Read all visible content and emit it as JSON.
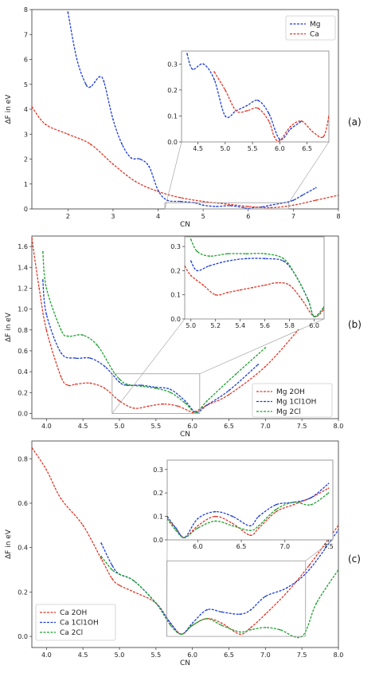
{
  "colors": {
    "red": "#e0392b",
    "blue": "#1f3fd6",
    "green": "#21a131",
    "frame": "#333333",
    "guide": "#9a9a9a"
  },
  "chart_data": [
    {
      "panel_label": "(a)",
      "type": "line",
      "xlabel": "CN",
      "ylabel": "ΔF in eV",
      "xlim": [
        1.2,
        8
      ],
      "ylim": [
        0,
        8
      ],
      "xticks": [
        "2",
        "3",
        "4",
        "5",
        "6",
        "7",
        "8"
      ],
      "yticks": [
        "0",
        "1",
        "2",
        "3",
        "4",
        "5",
        "6",
        "7",
        "8"
      ],
      "legend_position": "top-right",
      "series": [
        {
          "name": "Mg",
          "color": "blue",
          "x": [
            2.0,
            2.2,
            2.4,
            2.5,
            2.6,
            2.7,
            2.8,
            3.0,
            3.2,
            3.4,
            3.6,
            3.8,
            4.0,
            4.2,
            4.5,
            4.8,
            5.0,
            5.3,
            5.6,
            5.9,
            6.0,
            6.1,
            6.3,
            6.5,
            6.8,
            7.0,
            7.2,
            7.5
          ],
          "y": [
            7.9,
            6.0,
            5.0,
            4.9,
            5.1,
            5.3,
            5.1,
            3.6,
            2.6,
            2.05,
            2.0,
            1.7,
            0.75,
            0.35,
            0.3,
            0.25,
            0.15,
            0.1,
            0.13,
            0.05,
            0.01,
            0.05,
            0.08,
            0.15,
            0.25,
            0.35,
            0.55,
            0.85
          ]
        },
        {
          "name": "Ca",
          "color": "red",
          "x": [
            1.2,
            1.5,
            2.0,
            2.5,
            3.0,
            3.5,
            4.0,
            4.5,
            5.0,
            5.5,
            6.0,
            6.5,
            7.0,
            7.5,
            8.0
          ],
          "y": [
            4.1,
            3.4,
            3.0,
            2.6,
            1.8,
            1.1,
            0.7,
            0.45,
            0.3,
            0.2,
            0.1,
            0.05,
            0.15,
            0.35,
            0.55
          ]
        }
      ],
      "inset": {
        "xlim": [
          4.2,
          6.9
        ],
        "ylim": [
          0,
          0.35
        ],
        "xticks": [
          "4.5",
          "5.0",
          "5.5",
          "6.0",
          "6.5"
        ],
        "yticks": [
          "0.0",
          "0.1",
          "0.2",
          "0.3"
        ],
        "series": [
          {
            "name": "Mg",
            "color": "blue",
            "x": [
              4.3,
              4.4,
              4.6,
              4.8,
              5.0,
              5.2,
              5.4,
              5.6,
              5.8,
              6.0,
              6.2,
              6.4
            ],
            "y": [
              0.34,
              0.28,
              0.3,
              0.24,
              0.1,
              0.12,
              0.14,
              0.16,
              0.11,
              0.01,
              0.05,
              0.08
            ]
          },
          {
            "name": "Ca",
            "color": "red",
            "x": [
              4.8,
              5.0,
              5.2,
              5.4,
              5.6,
              5.8,
              5.9,
              6.0,
              6.2,
              6.4,
              6.6,
              6.8,
              6.9
            ],
            "y": [
              0.27,
              0.2,
              0.12,
              0.12,
              0.13,
              0.08,
              0.02,
              0.005,
              0.06,
              0.08,
              0.04,
              0.02,
              0.1
            ]
          }
        ]
      }
    },
    {
      "panel_label": "(b)",
      "type": "line",
      "xlabel": "CN",
      "ylabel": "ΔF in eV",
      "xlim": [
        3.8,
        8.0
      ],
      "ylim": [
        -0.05,
        1.7
      ],
      "xticks": [
        "4.0",
        "4.5",
        "5.0",
        "5.5",
        "6.0",
        "6.5",
        "7.0",
        "7.5",
        "8.0"
      ],
      "yticks": [
        "0.0",
        "0.2",
        "0.4",
        "0.6",
        "0.8",
        "1.0",
        "1.2",
        "1.4",
        "1.6"
      ],
      "legend_position": "bottom-right",
      "series": [
        {
          "name": "Mg 2OH",
          "color": "red",
          "x": [
            3.8,
            3.9,
            4.0,
            4.2,
            4.3,
            4.4,
            4.6,
            4.8,
            5.0,
            5.2,
            5.4,
            5.6,
            5.8,
            6.0,
            6.05,
            6.2,
            6.5,
            7.0,
            7.45
          ],
          "y": [
            1.68,
            1.2,
            0.8,
            0.35,
            0.27,
            0.28,
            0.29,
            0.24,
            0.12,
            0.05,
            0.07,
            0.09,
            0.07,
            0.01,
            0.02,
            0.08,
            0.18,
            0.45,
            0.8
          ]
        },
        {
          "name": "Mg 1Cl1OH",
          "color": "blue",
          "x": [
            3.95,
            4.0,
            4.2,
            4.4,
            4.6,
            4.8,
            5.0,
            5.1,
            5.3,
            5.5,
            5.7,
            5.9,
            6.05,
            6.2,
            6.5,
            6.9
          ],
          "y": [
            1.28,
            0.95,
            0.58,
            0.53,
            0.53,
            0.45,
            0.3,
            0.27,
            0.27,
            0.25,
            0.23,
            0.12,
            0.01,
            0.08,
            0.22,
            0.47
          ]
        },
        {
          "name": "Mg 2Cl",
          "color": "green",
          "x": [
            3.95,
            4.0,
            4.2,
            4.3,
            4.5,
            4.7,
            4.9,
            5.0,
            5.1,
            5.3,
            5.5,
            5.7,
            5.9,
            6.05,
            6.2,
            6.6,
            7.0
          ],
          "y": [
            1.55,
            1.2,
            0.8,
            0.74,
            0.75,
            0.65,
            0.42,
            0.33,
            0.28,
            0.26,
            0.24,
            0.2,
            0.1,
            0.01,
            0.12,
            0.38,
            0.63
          ]
        }
      ],
      "inset": {
        "xlim": [
          4.95,
          6.08
        ],
        "ylim": [
          0,
          0.34
        ],
        "xticks": [
          "5.0",
          "5.2",
          "5.4",
          "5.6",
          "5.8",
          "6.0"
        ],
        "yticks": [
          "0.0",
          "0.1",
          "0.2",
          "0.3"
        ],
        "series": [
          {
            "name": "Mg 2OH",
            "color": "red",
            "x": [
              4.95,
              5.0,
              5.1,
              5.2,
              5.3,
              5.4,
              5.5,
              5.6,
              5.7,
              5.8,
              5.9,
              6.0,
              6.08
            ],
            "y": [
              0.22,
              0.18,
              0.14,
              0.1,
              0.11,
              0.12,
              0.13,
              0.14,
              0.15,
              0.14,
              0.08,
              0.01,
              0.04
            ]
          },
          {
            "name": "Mg 1Cl1OH",
            "color": "blue",
            "x": [
              5.0,
              5.05,
              5.15,
              5.3,
              5.45,
              5.6,
              5.75,
              5.85,
              5.95,
              6.0,
              6.08
            ],
            "y": [
              0.24,
              0.2,
              0.22,
              0.24,
              0.25,
              0.25,
              0.24,
              0.18,
              0.08,
              0.01,
              0.05
            ]
          },
          {
            "name": "Mg 2Cl",
            "color": "green",
            "x": [
              5.0,
              5.05,
              5.15,
              5.3,
              5.45,
              5.6,
              5.75,
              5.85,
              5.95,
              6.0,
              6.08
            ],
            "y": [
              0.33,
              0.28,
              0.26,
              0.27,
              0.27,
              0.27,
              0.25,
              0.18,
              0.08,
              0.01,
              0.05
            ]
          }
        ]
      }
    },
    {
      "panel_label": "(c)",
      "type": "line",
      "xlabel": "CN",
      "ylabel": "ΔF in eV",
      "xlim": [
        3.8,
        8.0
      ],
      "ylim": [
        -0.05,
        0.88
      ],
      "xticks": [
        "4.0",
        "4.5",
        "5.0",
        "5.5",
        "6.0",
        "6.5",
        "7.0",
        "7.5",
        "8.0"
      ],
      "yticks": [
        "0.0",
        "0.2",
        "0.4",
        "0.6",
        "0.8"
      ],
      "legend_position": "bottom-left",
      "series": [
        {
          "name": "Ca 2OH",
          "color": "red",
          "x": [
            3.8,
            4.0,
            4.2,
            4.5,
            4.75,
            4.9,
            5.0,
            5.2,
            5.5,
            5.7,
            5.85,
            6.0,
            6.2,
            6.4,
            6.65,
            6.8,
            7.0,
            7.3,
            7.6,
            8.0
          ],
          "y": [
            0.85,
            0.75,
            0.62,
            0.5,
            0.35,
            0.26,
            0.23,
            0.2,
            0.15,
            0.06,
            0.01,
            0.05,
            0.08,
            0.06,
            0.01,
            0.04,
            0.1,
            0.2,
            0.32,
            0.5
          ]
        },
        {
          "name": "Ca 1Cl1OH",
          "color": "blue",
          "x": [
            4.75,
            4.9,
            5.0,
            5.2,
            5.5,
            5.7,
            5.85,
            6.0,
            6.2,
            6.4,
            6.65,
            6.8,
            7.0,
            7.3,
            7.6,
            8.0
          ],
          "y": [
            0.42,
            0.32,
            0.28,
            0.25,
            0.15,
            0.06,
            0.01,
            0.06,
            0.12,
            0.11,
            0.1,
            0.12,
            0.18,
            0.22,
            0.3,
            0.48
          ]
        },
        {
          "name": "Ca 2Cl",
          "color": "green",
          "x": [
            4.75,
            4.9,
            5.0,
            5.2,
            5.5,
            5.7,
            5.85,
            6.0,
            6.2,
            6.4,
            6.65,
            6.8,
            7.0,
            7.2,
            7.5,
            7.7,
            8.0
          ],
          "y": [
            0.36,
            0.3,
            0.28,
            0.25,
            0.15,
            0.05,
            0.01,
            0.05,
            0.08,
            0.05,
            0.02,
            0.03,
            0.04,
            0.03,
            0.0,
            0.15,
            0.3
          ]
        }
      ],
      "inset": {
        "xlim": [
          5.65,
          7.55
        ],
        "ylim": [
          0,
          0.34
        ],
        "xticks": [
          "6.0",
          "6.5",
          "7.0",
          "7.5"
        ],
        "yticks": [
          "0.0",
          "0.1",
          "0.2",
          "0.3"
        ],
        "series": [
          {
            "name": "Ca 2OH",
            "color": "red",
            "x": [
              5.65,
              5.75,
              5.85,
              6.0,
              6.2,
              6.4,
              6.6,
              6.7,
              6.9,
              7.1,
              7.3,
              7.5
            ],
            "y": [
              0.09,
              0.05,
              0.01,
              0.06,
              0.1,
              0.07,
              0.02,
              0.05,
              0.12,
              0.15,
              0.18,
              0.22
            ]
          },
          {
            "name": "Ca 1Cl1OH",
            "color": "blue",
            "x": [
              5.65,
              5.75,
              5.85,
              6.0,
              6.2,
              6.4,
              6.6,
              6.7,
              6.9,
              7.1,
              7.3,
              7.5
            ],
            "y": [
              0.1,
              0.05,
              0.01,
              0.09,
              0.12,
              0.1,
              0.06,
              0.1,
              0.15,
              0.16,
              0.18,
              0.24
            ]
          },
          {
            "name": "Ca 2Cl",
            "color": "green",
            "x": [
              5.65,
              5.75,
              5.85,
              6.0,
              6.2,
              6.4,
              6.6,
              6.7,
              6.9,
              7.1,
              7.3,
              7.5
            ],
            "y": [
              0.09,
              0.04,
              0.01,
              0.05,
              0.08,
              0.06,
              0.04,
              0.06,
              0.13,
              0.16,
              0.15,
              0.2
            ]
          }
        ]
      }
    }
  ]
}
